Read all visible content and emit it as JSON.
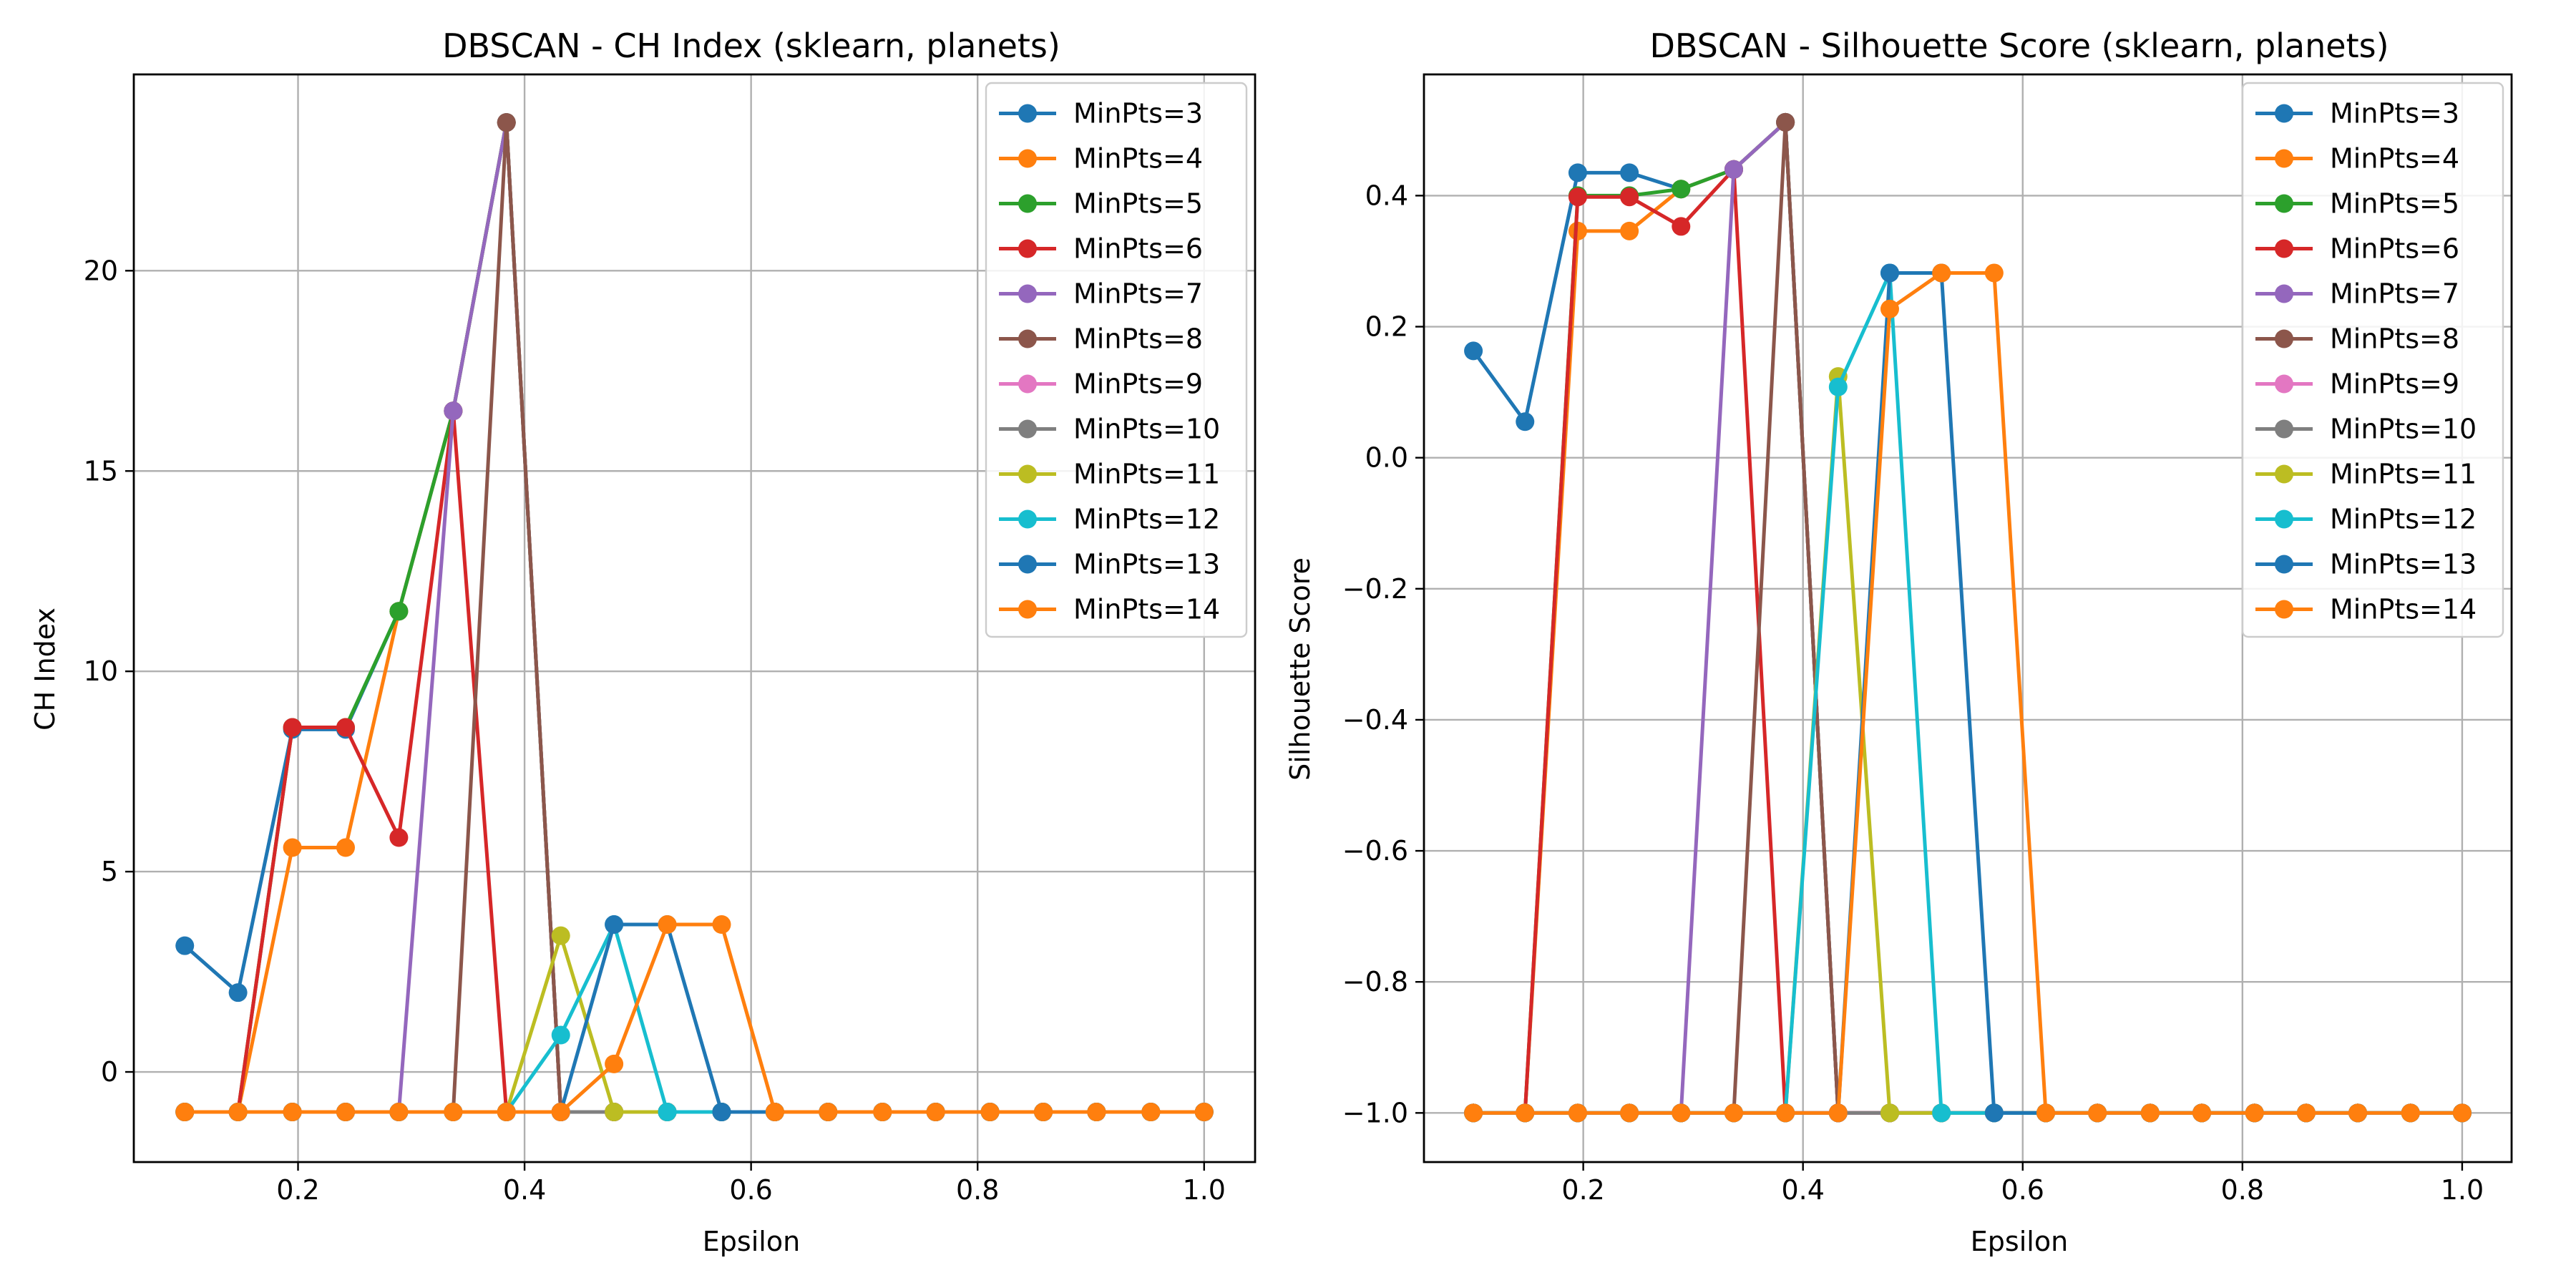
{
  "chart_data": [
    {
      "type": "line",
      "title": "DBSCAN - CH Index (sklearn, planets)",
      "xlabel": "Epsilon",
      "ylabel": "CH Index",
      "xlim": [
        0.055,
        1.045
      ],
      "ylim": [
        -2.25,
        24.9
      ],
      "xticks": [
        "0.2",
        "0.4",
        "0.6",
        "0.8",
        "1.0"
      ],
      "xtick_values": [
        0.2,
        0.4,
        0.6,
        0.8,
        1.0
      ],
      "yticks": [
        "0",
        "5",
        "10",
        "15",
        "20"
      ],
      "ytick_values": [
        0,
        5,
        10,
        15,
        20
      ],
      "grid": true,
      "legend": "top-right",
      "x": [
        0.1,
        0.147,
        0.195,
        0.242,
        0.289,
        0.337,
        0.384,
        0.432,
        0.479,
        0.526,
        0.574,
        0.621,
        0.668,
        0.716,
        0.763,
        0.811,
        0.858,
        0.905,
        0.953,
        1.0
      ],
      "series": [
        {
          "name": "MinPts=3",
          "color": "#1f77b4",
          "values": [
            3.15,
            1.98,
            8.55,
            8.55,
            11.5,
            16.5,
            23.7,
            -1,
            -1,
            -1,
            -1,
            -1,
            -1,
            -1,
            -1,
            -1,
            -1,
            -1,
            -1,
            -1
          ]
        },
        {
          "name": "MinPts=4",
          "color": "#ff7f0e",
          "values": [
            -1,
            -1,
            5.6,
            5.6,
            11.5,
            16.5,
            23.7,
            -1,
            -1,
            -1,
            -1,
            -1,
            -1,
            -1,
            -1,
            -1,
            -1,
            -1,
            -1,
            -1
          ]
        },
        {
          "name": "MinPts=5",
          "color": "#2ca02c",
          "values": [
            -1,
            -1,
            8.6,
            8.6,
            11.5,
            16.5,
            23.7,
            -1,
            -1,
            -1,
            -1,
            -1,
            -1,
            -1,
            -1,
            -1,
            -1,
            -1,
            -1,
            -1
          ]
        },
        {
          "name": "MinPts=6",
          "color": "#d62728",
          "values": [
            -1,
            -1,
            8.6,
            8.6,
            5.85,
            16.5,
            -1,
            -1,
            -1,
            -1,
            -1,
            -1,
            -1,
            -1,
            -1,
            -1,
            -1,
            -1,
            -1,
            -1
          ]
        },
        {
          "name": "MinPts=7",
          "color": "#9467bd",
          "values": [
            -1,
            -1,
            -1,
            -1,
            -1,
            16.5,
            23.7,
            -1,
            -1,
            -1,
            -1,
            -1,
            -1,
            -1,
            -1,
            -1,
            -1,
            -1,
            -1,
            -1
          ]
        },
        {
          "name": "MinPts=8",
          "color": "#8c564b",
          "values": [
            -1,
            -1,
            -1,
            -1,
            -1,
            -1,
            23.7,
            -1,
            -1,
            -1,
            -1,
            -1,
            -1,
            -1,
            -1,
            -1,
            -1,
            -1,
            -1,
            -1
          ]
        },
        {
          "name": "MinPts=9",
          "color": "#e377c2",
          "values": [
            -1,
            -1,
            -1,
            -1,
            -1,
            -1,
            -1,
            -1,
            -1,
            -1,
            -1,
            -1,
            -1,
            -1,
            -1,
            -1,
            -1,
            -1,
            -1,
            -1
          ]
        },
        {
          "name": "MinPts=10",
          "color": "#7f7f7f",
          "values": [
            -1,
            -1,
            -1,
            -1,
            -1,
            -1,
            -1,
            -1,
            -1,
            -1,
            -1,
            -1,
            -1,
            -1,
            -1,
            -1,
            -1,
            -1,
            -1,
            -1
          ]
        },
        {
          "name": "MinPts=11",
          "color": "#bcbd22",
          "values": [
            -1,
            -1,
            -1,
            -1,
            -1,
            -1,
            -1,
            3.4,
            -1,
            -1,
            -1,
            -1,
            -1,
            -1,
            -1,
            -1,
            -1,
            -1,
            -1,
            -1
          ]
        },
        {
          "name": "MinPts=12",
          "color": "#17becf",
          "values": [
            -1,
            -1,
            -1,
            -1,
            -1,
            -1,
            -1,
            0.92,
            3.68,
            -1,
            -1,
            -1,
            -1,
            -1,
            -1,
            -1,
            -1,
            -1,
            -1,
            -1
          ]
        },
        {
          "name": "MinPts=13",
          "color": "#1f77b4",
          "values": [
            -1,
            -1,
            -1,
            -1,
            -1,
            -1,
            -1,
            -1,
            3.68,
            3.68,
            -1,
            -1,
            -1,
            -1,
            -1,
            -1,
            -1,
            -1,
            -1,
            -1
          ]
        },
        {
          "name": "MinPts=14",
          "color": "#ff7f0e",
          "values": [
            -1,
            -1,
            -1,
            -1,
            -1,
            -1,
            -1,
            -1,
            0.2,
            3.68,
            3.68,
            -1,
            -1,
            -1,
            -1,
            -1,
            -1,
            -1,
            -1,
            -1
          ]
        }
      ]
    },
    {
      "type": "line",
      "title": "DBSCAN - Silhouette Score (sklearn, planets)",
      "xlabel": "Epsilon",
      "ylabel": "Silhouette Score",
      "xlim": [
        0.055,
        1.045
      ],
      "ylim": [
        -1.075,
        0.585
      ],
      "xticks": [
        "0.2",
        "0.4",
        "0.6",
        "0.8",
        "1.0"
      ],
      "xtick_values": [
        0.2,
        0.4,
        0.6,
        0.8,
        1.0
      ],
      "yticks": [
        "−1.0",
        "−0.8",
        "−0.6",
        "−0.4",
        "−0.2",
        "0.0",
        "0.2",
        "0.4"
      ],
      "ytick_values": [
        -1.0,
        -0.8,
        -0.6,
        -0.4,
        -0.2,
        0.0,
        0.2,
        0.4
      ],
      "grid": true,
      "legend": "top-right",
      "x": [
        0.1,
        0.147,
        0.195,
        0.242,
        0.289,
        0.337,
        0.384,
        0.432,
        0.479,
        0.526,
        0.574,
        0.621,
        0.668,
        0.716,
        0.763,
        0.811,
        0.858,
        0.905,
        0.953,
        1.0
      ],
      "series": [
        {
          "name": "MinPts=3",
          "color": "#1f77b4",
          "values": [
            0.163,
            0.055,
            0.435,
            0.435,
            0.41,
            0.44,
            0.512,
            -1,
            -1,
            -1,
            -1,
            -1,
            -1,
            -1,
            -1,
            -1,
            -1,
            -1,
            -1,
            -1
          ]
        },
        {
          "name": "MinPts=4",
          "color": "#ff7f0e",
          "values": [
            -1,
            -1,
            0.346,
            0.346,
            0.41,
            0.44,
            0.512,
            -1,
            -1,
            -1,
            -1,
            -1,
            -1,
            -1,
            -1,
            -1,
            -1,
            -1,
            -1,
            -1
          ]
        },
        {
          "name": "MinPts=5",
          "color": "#2ca02c",
          "values": [
            -1,
            -1,
            0.4,
            0.4,
            0.41,
            0.44,
            0.512,
            -1,
            -1,
            -1,
            -1,
            -1,
            -1,
            -1,
            -1,
            -1,
            -1,
            -1,
            -1,
            -1
          ]
        },
        {
          "name": "MinPts=6",
          "color": "#d62728",
          "values": [
            -1,
            -1,
            0.398,
            0.398,
            0.353,
            0.44,
            -1,
            -1,
            -1,
            -1,
            -1,
            -1,
            -1,
            -1,
            -1,
            -1,
            -1,
            -1,
            -1,
            -1
          ]
        },
        {
          "name": "MinPts=7",
          "color": "#9467bd",
          "values": [
            -1,
            -1,
            -1,
            -1,
            -1,
            0.44,
            0.512,
            -1,
            -1,
            -1,
            -1,
            -1,
            -1,
            -1,
            -1,
            -1,
            -1,
            -1,
            -1,
            -1
          ]
        },
        {
          "name": "MinPts=8",
          "color": "#8c564b",
          "values": [
            -1,
            -1,
            -1,
            -1,
            -1,
            -1,
            0.512,
            -1,
            -1,
            -1,
            -1,
            -1,
            -1,
            -1,
            -1,
            -1,
            -1,
            -1,
            -1,
            -1
          ]
        },
        {
          "name": "MinPts=9",
          "color": "#e377c2",
          "values": [
            -1,
            -1,
            -1,
            -1,
            -1,
            -1,
            -1,
            -1,
            -1,
            -1,
            -1,
            -1,
            -1,
            -1,
            -1,
            -1,
            -1,
            -1,
            -1,
            -1
          ]
        },
        {
          "name": "MinPts=10",
          "color": "#7f7f7f",
          "values": [
            -1,
            -1,
            -1,
            -1,
            -1,
            -1,
            -1,
            -1,
            -1,
            -1,
            -1,
            -1,
            -1,
            -1,
            -1,
            -1,
            -1,
            -1,
            -1,
            -1
          ]
        },
        {
          "name": "MinPts=11",
          "color": "#bcbd22",
          "values": [
            -1,
            -1,
            -1,
            -1,
            -1,
            -1,
            -1,
            0.124,
            -1,
            -1,
            -1,
            -1,
            -1,
            -1,
            -1,
            -1,
            -1,
            -1,
            -1,
            -1
          ]
        },
        {
          "name": "MinPts=12",
          "color": "#17becf",
          "values": [
            -1,
            -1,
            -1,
            -1,
            -1,
            -1,
            -1,
            0.108,
            0.282,
            -1,
            -1,
            -1,
            -1,
            -1,
            -1,
            -1,
            -1,
            -1,
            -1,
            -1
          ]
        },
        {
          "name": "MinPts=13",
          "color": "#1f77b4",
          "values": [
            -1,
            -1,
            -1,
            -1,
            -1,
            -1,
            -1,
            -1,
            0.282,
            0.282,
            -1,
            -1,
            -1,
            -1,
            -1,
            -1,
            -1,
            -1,
            -1,
            -1
          ]
        },
        {
          "name": "MinPts=14",
          "color": "#ff7f0e",
          "values": [
            -1,
            -1,
            -1,
            -1,
            -1,
            -1,
            -1,
            -1,
            0.227,
            0.282,
            0.282,
            -1,
            -1,
            -1,
            -1,
            -1,
            -1,
            -1,
            -1,
            -1
          ]
        }
      ]
    }
  ]
}
